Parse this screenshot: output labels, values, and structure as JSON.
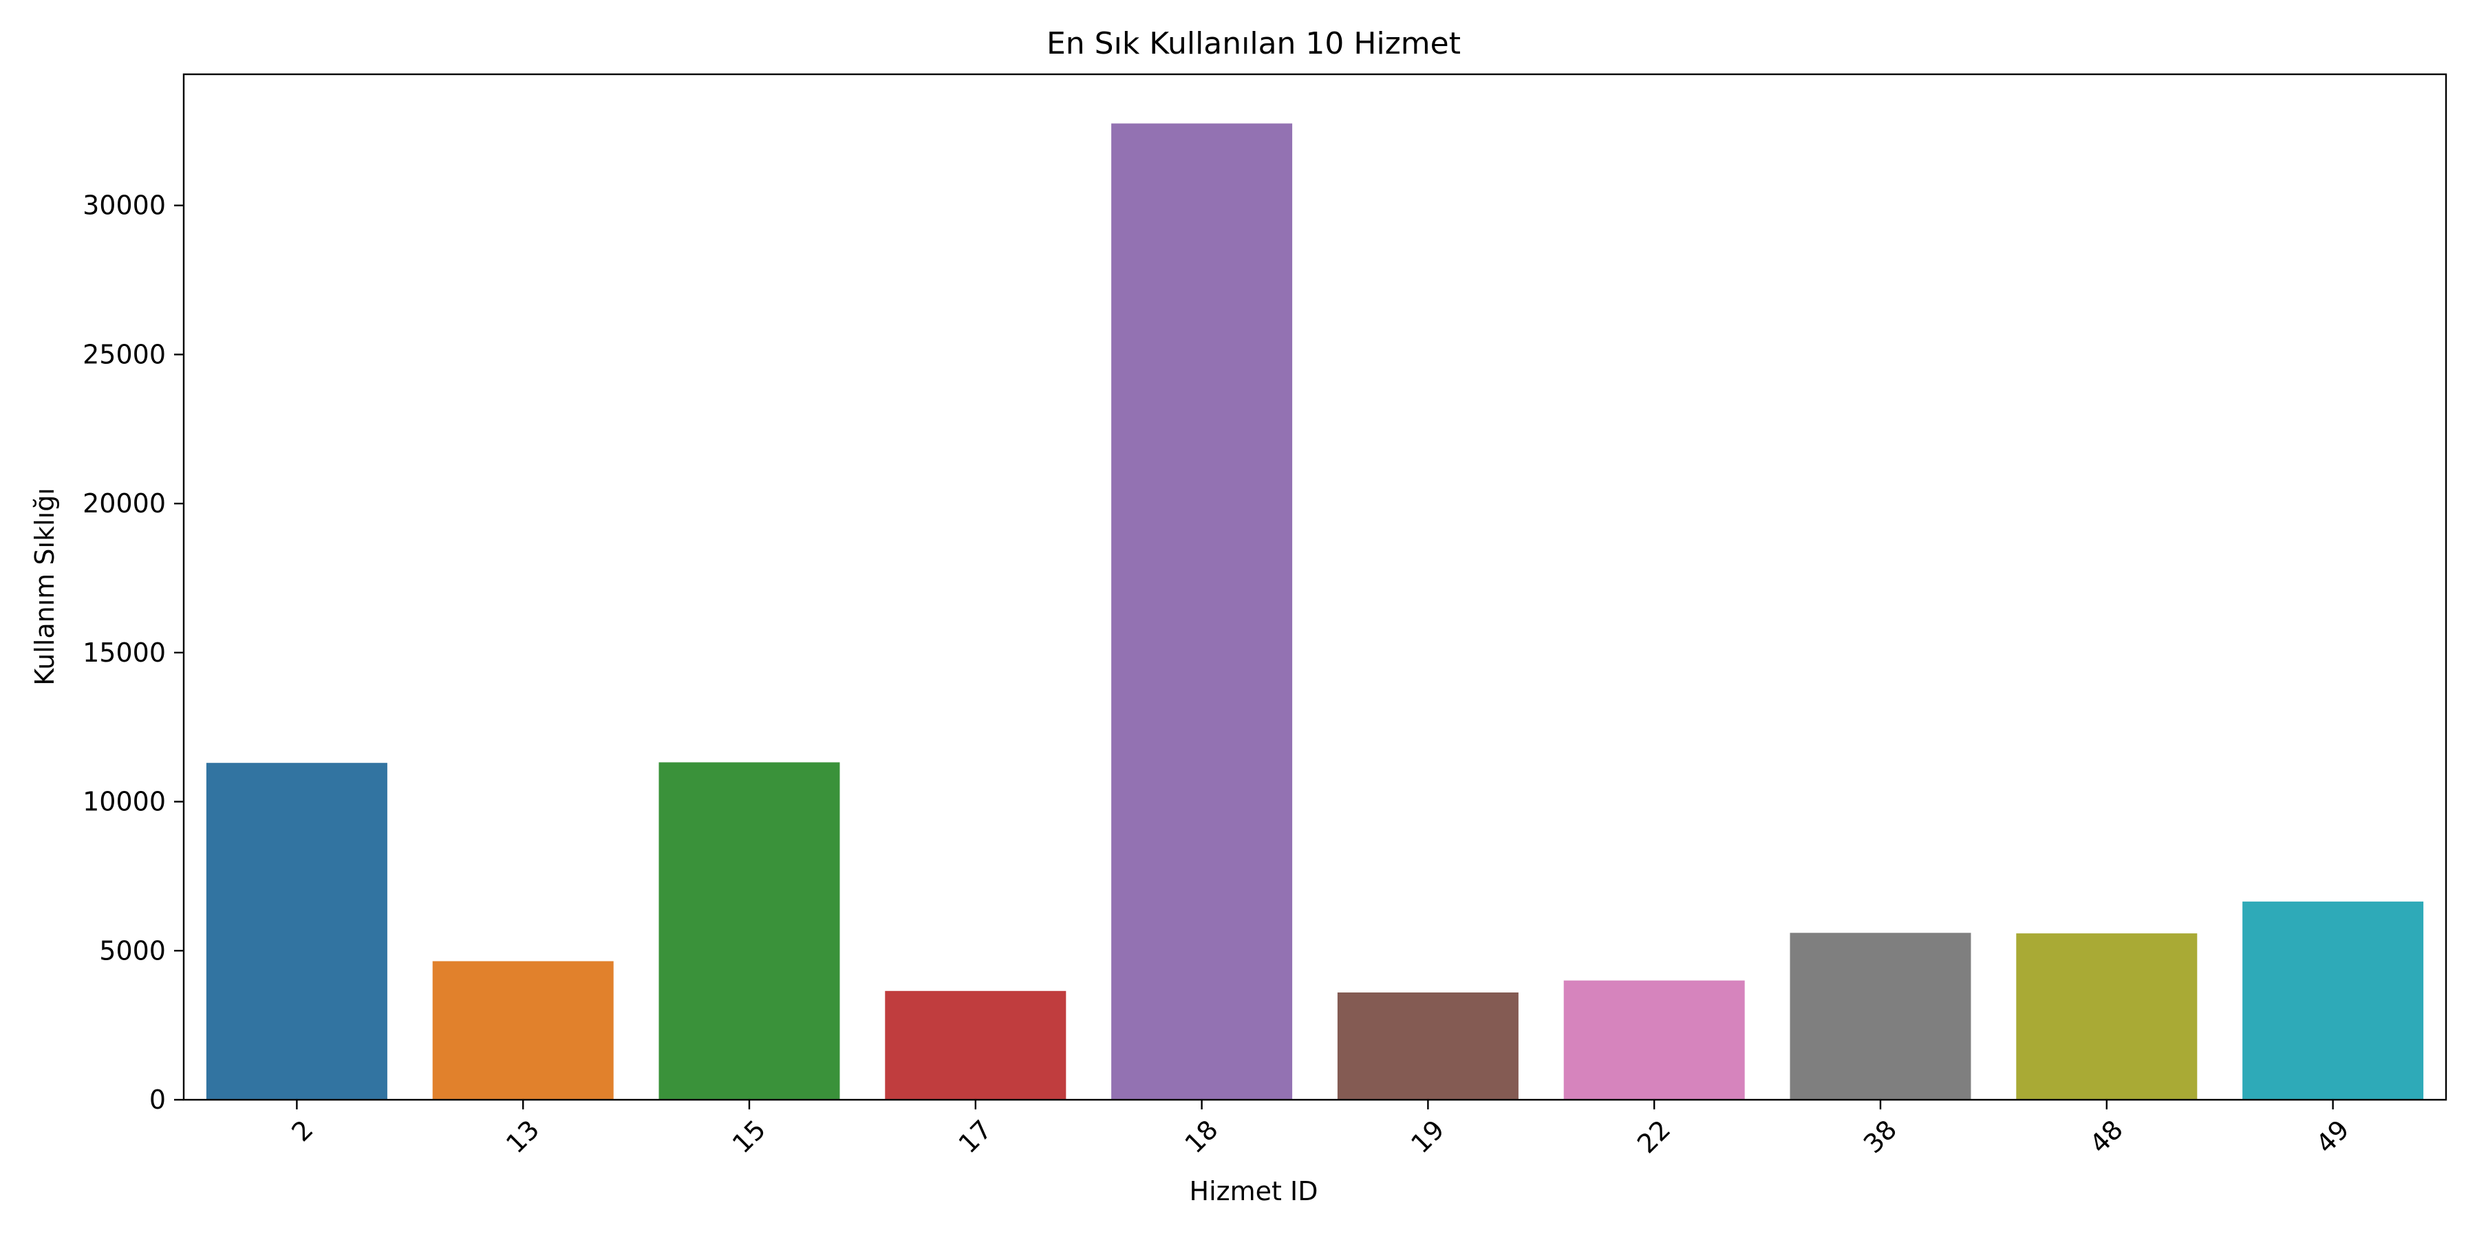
{
  "chart_data": {
    "type": "bar",
    "title": "En Sık Kullanılan 10 Hizmet",
    "xlabel": "Hizmet ID",
    "ylabel": "Kullanım Sıklığı",
    "categories": [
      "2",
      "13",
      "15",
      "17",
      "18",
      "19",
      "22",
      "38",
      "48",
      "49"
    ],
    "values": [
      11300,
      4650,
      11320,
      3650,
      32750,
      3600,
      4000,
      5600,
      5580,
      6650
    ],
    "colors": [
      "#3274a1",
      "#e1812c",
      "#3a923a",
      "#c03d3e",
      "#9372b2",
      "#845b53",
      "#d684bd",
      "#7f7f7f",
      "#a9aa35",
      "#2eaab8"
    ],
    "ylim": [
      0,
      34400
    ],
    "yticks": [
      0,
      5000,
      10000,
      15000,
      20000,
      25000,
      30000
    ],
    "grid": false,
    "legend": "none"
  }
}
